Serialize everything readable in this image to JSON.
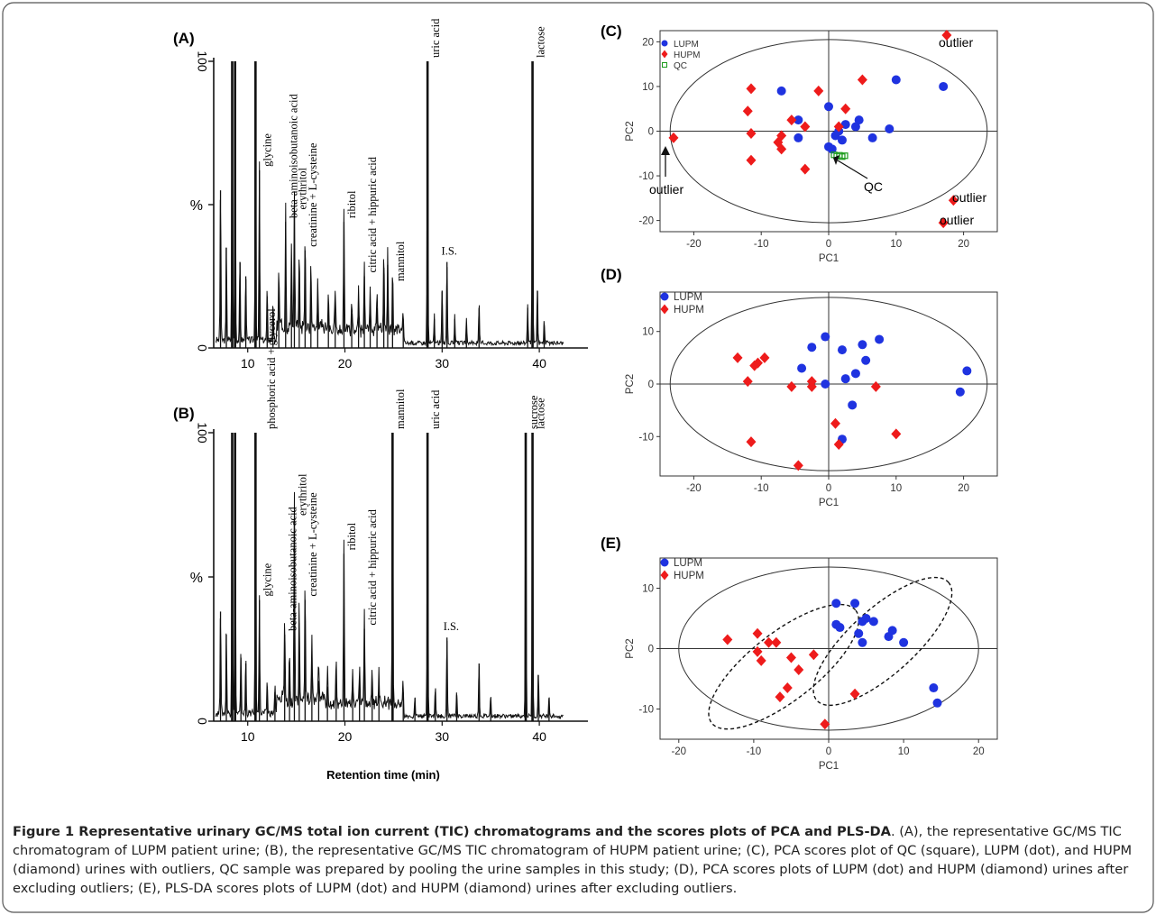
{
  "caption": {
    "lead": "Figure 1 Representative urinary GC/MS total ion current (TIC) chromatograms and the scores plots of PCA and PLS-DA",
    "rest": ". (A), the representative GC/MS TIC chromatogram of LUPM patient urine; (B), the representative GC/MS TIC chromatogram of HUPM patient urine; (C), PCA scores plot of QC (square), LUPM (dot), and HUPM (diamond) urines with outliers, QC sample was prepared by pooling the urine samples in this study; (D), PCA scores plots of LUPM (dot) and HUPM (diamond) urines after excluding outliers; (E), PLS-DA scores plots of LUPM (dot) and HUPM (diamond) urines after excluding outliers."
  },
  "colors": {
    "lupm": "#1f33e0",
    "hupm": "#ee1b1b",
    "qc": "#1a9a1a",
    "trace": "#111111"
  },
  "chart_data": [
    {
      "id": "A",
      "panel_label": "(A)",
      "type": "line",
      "ylabel_top": "100",
      "ylabel_mid": "%",
      "ylabel_bottom": "0",
      "xlim": [
        6.5,
        45
      ],
      "xticks": [
        10,
        20,
        30,
        40
      ],
      "xlabel": "",
      "peaks": [
        [
          7.2,
          55
        ],
        [
          7.8,
          35
        ],
        [
          8.4,
          100
        ],
        [
          8.7,
          100
        ],
        [
          9.2,
          30
        ],
        [
          9.8,
          25
        ],
        [
          10.8,
          100
        ],
        [
          11.2,
          62
        ],
        [
          12.0,
          18
        ],
        [
          12.6,
          14
        ],
        [
          13.2,
          20
        ],
        [
          13.9,
          44
        ],
        [
          14.5,
          30
        ],
        [
          14.8,
          47
        ],
        [
          15.3,
          26
        ],
        [
          15.9,
          34
        ],
        [
          16.5,
          24
        ],
        [
          17.2,
          16
        ],
        [
          18.3,
          14
        ],
        [
          19.0,
          16
        ],
        [
          19.9,
          44
        ],
        [
          20.7,
          12
        ],
        [
          21.4,
          16
        ],
        [
          22.0,
          25
        ],
        [
          22.6,
          14
        ],
        [
          23.3,
          14
        ],
        [
          24.0,
          28
        ],
        [
          24.4,
          29
        ],
        [
          24.9,
          22
        ],
        [
          26.0,
          10
        ],
        [
          28.5,
          100
        ],
        [
          29.2,
          10
        ],
        [
          30.0,
          20
        ],
        [
          30.5,
          30
        ],
        [
          31.3,
          10
        ],
        [
          32.5,
          8
        ],
        [
          33.8,
          14
        ],
        [
          38.8,
          14
        ],
        [
          39.3,
          100
        ],
        [
          39.8,
          20
        ],
        [
          40.5,
          8
        ]
      ],
      "annotations": [
        {
          "x": 11.2,
          "y": 62,
          "label": "glycine"
        },
        {
          "x": 13.9,
          "y": 44,
          "label": "beta-aminoisobutanoic acid"
        },
        {
          "x": 14.8,
          "y": 47,
          "label": "erythritol"
        },
        {
          "x": 15.9,
          "y": 34,
          "label": "creatinine + L-cysteine"
        },
        {
          "x": 19.9,
          "y": 44,
          "label": "ribitol"
        },
        {
          "x": 22.0,
          "y": 25,
          "label": "citric acid + hippuric acid"
        },
        {
          "x": 24.9,
          "y": 22,
          "label": "mannitol"
        },
        {
          "x": 28.5,
          "y": 100,
          "label": "uric acid"
        },
        {
          "x": 39.3,
          "y": 100,
          "label": "lactose"
        }
      ],
      "horizontal_annotations": [
        {
          "x": 30.3,
          "y": 30,
          "label": "I.S."
        }
      ]
    },
    {
      "id": "B",
      "panel_label": "(B)",
      "type": "line",
      "ylabel_top": "100",
      "ylabel_mid": "%",
      "ylabel_bottom": "0",
      "xlim": [
        6.5,
        45
      ],
      "xticks": [
        10,
        20,
        30,
        40
      ],
      "xlabel": "Retention time (min)",
      "peaks": [
        [
          7.2,
          38
        ],
        [
          7.8,
          30
        ],
        [
          8.4,
          100
        ],
        [
          8.7,
          100
        ],
        [
          9.3,
          22
        ],
        [
          9.8,
          20
        ],
        [
          10.8,
          100
        ],
        [
          11.2,
          42
        ],
        [
          12.0,
          12
        ],
        [
          12.8,
          10
        ],
        [
          13.8,
          30
        ],
        [
          14.3,
          18
        ],
        [
          14.8,
          70
        ],
        [
          15.3,
          34
        ],
        [
          15.9,
          42
        ],
        [
          16.6,
          22
        ],
        [
          17.3,
          14
        ],
        [
          18.2,
          12
        ],
        [
          19.1,
          16
        ],
        [
          19.9,
          58
        ],
        [
          20.8,
          12
        ],
        [
          21.5,
          14
        ],
        [
          22.0,
          32
        ],
        [
          22.8,
          14
        ],
        [
          23.5,
          12
        ],
        [
          24.9,
          100
        ],
        [
          26.0,
          10
        ],
        [
          27.2,
          8
        ],
        [
          28.5,
          100
        ],
        [
          29.3,
          10
        ],
        [
          30.5,
          29
        ],
        [
          31.5,
          9
        ],
        [
          33.8,
          20
        ],
        [
          35.0,
          8
        ],
        [
          38.6,
          100
        ],
        [
          39.3,
          100
        ],
        [
          39.9,
          16
        ],
        [
          41.0,
          8
        ]
      ],
      "annotations": [
        {
          "x": 11.2,
          "y": 42,
          "label": "glycine"
        },
        {
          "x": 11.6,
          "y": 100,
          "label": "phosphoric acid + glycerol"
        },
        {
          "x": 13.8,
          "y": 30,
          "label": "beta-aminoisobutanoic acid"
        },
        {
          "x": 14.8,
          "y": 70,
          "label": "erythritol"
        },
        {
          "x": 15.9,
          "y": 42,
          "label": "creatinine + L-cysteine"
        },
        {
          "x": 19.9,
          "y": 58,
          "label": "ribitol"
        },
        {
          "x": 22.0,
          "y": 32,
          "label": "citric acid + hippuric acid"
        },
        {
          "x": 24.9,
          "y": 100,
          "label": "mannitol"
        },
        {
          "x": 28.5,
          "y": 100,
          "label": "uric acid"
        },
        {
          "x": 38.6,
          "y": 100,
          "label": "sucrose"
        },
        {
          "x": 39.3,
          "y": 100,
          "label": "lactose"
        }
      ],
      "horizontal_annotations": [
        {
          "x": 30.5,
          "y": 29,
          "label": "I.S."
        }
      ]
    },
    {
      "id": "C",
      "panel_label": "(C)",
      "type": "scatter",
      "xlabel": "PC1",
      "ylabel": "PC2",
      "xlim": [
        -25,
        25
      ],
      "ylim": [
        -22.5,
        22.5
      ],
      "xticks": [
        -20,
        -10,
        0,
        10,
        20
      ],
      "yticks": [
        -20,
        -10,
        0,
        10,
        20
      ],
      "ellipse": {
        "cx": 0,
        "cy": 0,
        "rx": 23.5,
        "ry": 20.5
      },
      "legend": [
        "LUPM",
        "HUPM",
        "QC"
      ],
      "series": [
        {
          "name": "LUPM",
          "marker": "dot",
          "points": [
            [
              -7,
              9
            ],
            [
              -4.5,
              2.5
            ],
            [
              -4.5,
              -1.5
            ],
            [
              0,
              5.5
            ],
            [
              0,
              -3.5
            ],
            [
              0.5,
              -4
            ],
            [
              1,
              -1
            ],
            [
              1.5,
              0
            ],
            [
              2,
              -2
            ],
            [
              2.5,
              1.5
            ],
            [
              4,
              1
            ],
            [
              4.5,
              2.5
            ],
            [
              6.5,
              -1.5
            ],
            [
              9,
              0.5
            ],
            [
              10,
              11.5
            ],
            [
              17,
              10
            ]
          ]
        },
        {
          "name": "HUPM",
          "marker": "diamond",
          "points": [
            [
              -23,
              -1.5
            ],
            [
              -11.5,
              9.5
            ],
            [
              -12,
              4.5
            ],
            [
              -11.5,
              -0.5
            ],
            [
              -11.5,
              -6.5
            ],
            [
              -7.5,
              -2.5
            ],
            [
              -7,
              -4
            ],
            [
              -7,
              -1
            ],
            [
              -5.5,
              2.5
            ],
            [
              -3.5,
              1
            ],
            [
              -3.5,
              -8.5
            ],
            [
              -1.5,
              9
            ],
            [
              1.5,
              1
            ],
            [
              2.5,
              5
            ],
            [
              5,
              11.5
            ],
            [
              17.5,
              21.5
            ],
            [
              18.5,
              -15.5
            ],
            [
              17,
              -20.5
            ]
          ]
        },
        {
          "name": "QC",
          "marker": "square",
          "points": [
            [
              0.8,
              -5.3
            ],
            [
              1.2,
              -5.6
            ],
            [
              1.6,
              -5.4
            ],
            [
              2.0,
              -5.7
            ],
            [
              2.4,
              -5.5
            ]
          ]
        }
      ],
      "text_annotations": [
        "outlier",
        "outlier",
        "outlier",
        "outlier",
        "QC"
      ]
    },
    {
      "id": "D",
      "panel_label": "(D)",
      "type": "scatter",
      "xlabel": "PC1",
      "ylabel": "PC2",
      "xlim": [
        -25,
        25
      ],
      "ylim": [
        -17.5,
        17.5
      ],
      "xticks": [
        -20,
        -10,
        0,
        10,
        20
      ],
      "yticks": [
        -10,
        0,
        10
      ],
      "ellipse": {
        "cx": 0,
        "cy": 0,
        "rx": 23.5,
        "ry": 16.5
      },
      "legend": [
        "LUPM",
        "HUPM"
      ],
      "series": [
        {
          "name": "LUPM",
          "marker": "dot",
          "points": [
            [
              -4,
              3
            ],
            [
              -2.5,
              7
            ],
            [
              -0.5,
              9
            ],
            [
              -0.5,
              0
            ],
            [
              2,
              6.5
            ],
            [
              2.5,
              1
            ],
            [
              3.5,
              -4
            ],
            [
              4,
              2
            ],
            [
              5,
              7.5
            ],
            [
              5.5,
              4.5
            ],
            [
              7.5,
              8.5
            ],
            [
              2,
              -10.5
            ],
            [
              19.5,
              -1.5
            ],
            [
              20.5,
              2.5
            ]
          ]
        },
        {
          "name": "HUPM",
          "marker": "diamond",
          "points": [
            [
              -13.5,
              5
            ],
            [
              -11,
              3.5
            ],
            [
              -10.5,
              4
            ],
            [
              -9.5,
              5
            ],
            [
              -12,
              0.5
            ],
            [
              -11.5,
              -11
            ],
            [
              -5.5,
              -0.5
            ],
            [
              -2.5,
              -0.5
            ],
            [
              -2.5,
              0.5
            ],
            [
              -4.5,
              -15.5
            ],
            [
              1,
              -7.5
            ],
            [
              1.5,
              -11.5
            ],
            [
              7,
              -0.5
            ],
            [
              10,
              -9.5
            ]
          ]
        }
      ]
    },
    {
      "id": "E",
      "panel_label": "(E)",
      "type": "scatter",
      "xlabel": "PC1",
      "ylabel": "PC2",
      "xlim": [
        -22.5,
        22.5
      ],
      "ylim": [
        -15,
        15
      ],
      "xticks": [
        -20,
        -10,
        0,
        10,
        20
      ],
      "yticks": [
        -10,
        0,
        10
      ],
      "ellipse": {
        "cx": 0,
        "cy": 0,
        "rx": 20,
        "ry": 13.5
      },
      "dashed_ellipses": [
        {
          "cx": -6,
          "cy": -3,
          "rx": 12.2,
          "ry": 5.6,
          "angle_deg": -38
        },
        {
          "cx": 7.2,
          "cy": 1.2,
          "rx": 11.8,
          "ry": 5.4,
          "angle_deg": -42
        }
      ],
      "legend": [
        "LUPM",
        "HUPM"
      ],
      "series": [
        {
          "name": "LUPM",
          "marker": "dot",
          "points": [
            [
              1,
              7.5
            ],
            [
              1,
              4
            ],
            [
              1.5,
              3.5
            ],
            [
              3.5,
              7.5
            ],
            [
              4,
              2.5
            ],
            [
              4.5,
              4.5
            ],
            [
              4.5,
              1
            ],
            [
              5,
              5
            ],
            [
              6,
              4.5
            ],
            [
              8,
              2
            ],
            [
              8.5,
              3
            ],
            [
              10,
              1
            ],
            [
              14,
              -6.5
            ],
            [
              14.5,
              -9
            ]
          ]
        },
        {
          "name": "HUPM",
          "marker": "diamond",
          "points": [
            [
              -13.5,
              1.5
            ],
            [
              -9.5,
              2.5
            ],
            [
              -9.5,
              -0.5
            ],
            [
              -9,
              -2
            ],
            [
              -8,
              1
            ],
            [
              -7,
              1
            ],
            [
              -6.5,
              -8
            ],
            [
              -5.5,
              -6.5
            ],
            [
              -5,
              -1.5
            ],
            [
              -4,
              -3.5
            ],
            [
              -2,
              -1
            ],
            [
              -0.5,
              -12.5
            ],
            [
              3.5,
              -7.5
            ]
          ]
        }
      ]
    }
  ]
}
